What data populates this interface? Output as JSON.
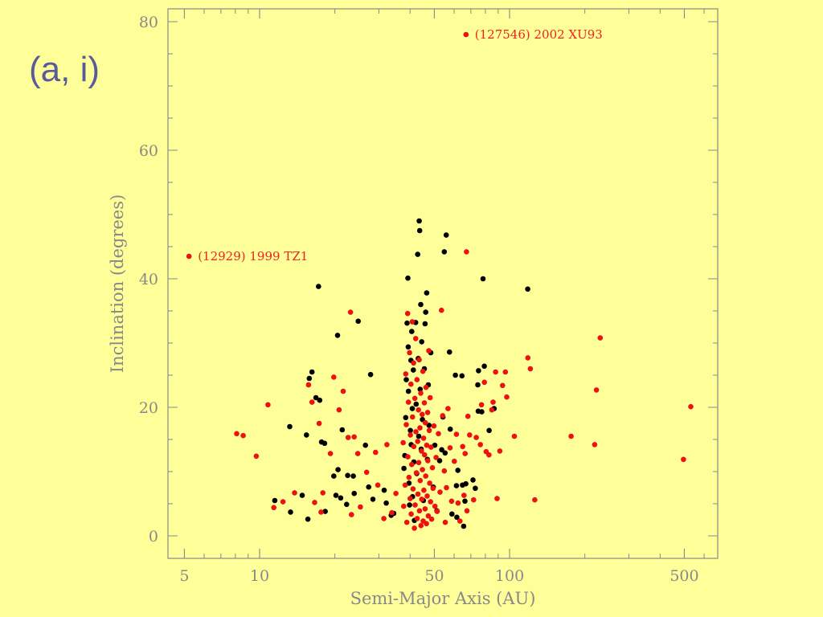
{
  "slide": {
    "title": "(a, i)"
  },
  "chart_data": {
    "type": "scatter",
    "title": "",
    "xlabel": "Semi-Major Axis (AU)",
    "ylabel": "Inclination (degrees)",
    "xscale": "log",
    "xlim": [
      4.3,
      680
    ],
    "ylim": [
      -3.5,
      82
    ],
    "x_ticks": [
      5,
      10,
      50,
      100,
      500
    ],
    "x_tick_labels": [
      "5",
      "10",
      "50",
      "100",
      "500"
    ],
    "y_ticks": [
      0,
      20,
      40,
      60,
      80
    ],
    "y_tick_labels": [
      "0",
      "20",
      "40",
      "60",
      "80"
    ],
    "grid": false,
    "colors": {
      "background": "#ffff99",
      "axis": "#888888",
      "black_series": "#000000",
      "red_series": "#ee1111",
      "annotation": "#ee2222"
    },
    "annotations": [
      {
        "text": "(127546) 2002 XU93",
        "x": 66.9,
        "y": 78
      },
      {
        "text": "(12929) 1999 TZ1",
        "x": 5.22,
        "y": 43.5
      }
    ],
    "series": [
      {
        "color": "black",
        "points": [
          [
            11.5,
            5.5
          ],
          [
            13.2,
            17
          ],
          [
            13.3,
            3.7
          ],
          [
            14.8,
            6.3
          ],
          [
            15.4,
            15.7
          ],
          [
            15.6,
            2.6
          ],
          [
            15.8,
            24.5
          ],
          [
            16.2,
            25.5
          ],
          [
            16.8,
            21.5
          ],
          [
            17.2,
            38.8
          ],
          [
            17.4,
            21.1
          ],
          [
            17.7,
            14.6
          ],
          [
            18.2,
            14.4
          ],
          [
            18.3,
            3.8
          ],
          [
            19.8,
            9.3
          ],
          [
            20.2,
            6.3
          ],
          [
            20.5,
            31.2
          ],
          [
            20.6,
            10.3
          ],
          [
            21.1,
            5.9
          ],
          [
            21.4,
            16.5
          ],
          [
            22.3,
            4.9
          ],
          [
            22.5,
            9.4
          ],
          [
            23.7,
            9.3
          ],
          [
            23.9,
            6.6
          ],
          [
            24.8,
            33.4
          ],
          [
            26.5,
            14.1
          ],
          [
            27.3,
            7.6
          ],
          [
            27.8,
            25.1
          ],
          [
            28.4,
            5.7
          ],
          [
            31.5,
            7.1
          ],
          [
            32.1,
            5.1
          ],
          [
            33.6,
            3.2
          ],
          [
            34.4,
            3.5
          ],
          [
            37.8,
            10.5
          ],
          [
            38.1,
            12.5
          ],
          [
            38.4,
            18.4
          ],
          [
            38.6,
            24.3
          ],
          [
            38.9,
            33.1
          ],
          [
            39.2,
            40.1
          ],
          [
            39.3,
            29.4
          ],
          [
            39.4,
            22.5
          ],
          [
            39.6,
            8.2
          ],
          [
            39.8,
            4.8
          ],
          [
            40.1,
            16.4
          ],
          [
            40.3,
            27.3
          ],
          [
            40.4,
            14.2
          ],
          [
            40.6,
            31.8
          ],
          [
            40.8,
            19.8
          ],
          [
            40.9,
            6.1
          ],
          [
            41.2,
            25.8
          ],
          [
            41.4,
            11.5
          ],
          [
            41.6,
            2.4
          ],
          [
            42.1,
            33.2
          ],
          [
            42.3,
            20.5
          ],
          [
            42.5,
            9.7
          ],
          [
            42.9,
            43.8
          ],
          [
            43.1,
            27.6
          ],
          [
            43.3,
            15.5
          ],
          [
            43.5,
            49
          ],
          [
            43.7,
            47.5
          ],
          [
            43.9,
            22.8
          ],
          [
            44.1,
            36
          ],
          [
            44.3,
            13.5
          ],
          [
            44.5,
            30.2
          ],
          [
            44.8,
            18.1
          ],
          [
            45.2,
            5.5
          ],
          [
            45.6,
            26
          ],
          [
            45.9,
            33
          ],
          [
            46.2,
            34.8
          ],
          [
            46.6,
            37.8
          ],
          [
            46.9,
            11.9
          ],
          [
            47.3,
            23.5
          ],
          [
            47.6,
            17.2
          ],
          [
            48.4,
            28.5
          ],
          [
            49.5,
            7.6
          ],
          [
            50.2,
            14.1
          ],
          [
            51.2,
            3.9
          ],
          [
            52.5,
            11.7
          ],
          [
            53.5,
            13.4
          ],
          [
            54.1,
            18.5
          ],
          [
            54.8,
            44.2
          ],
          [
            55.2,
            12.9
          ],
          [
            55.8,
            46.8
          ],
          [
            57.5,
            28.6
          ],
          [
            57.9,
            16.6
          ],
          [
            58.8,
            3.4
          ],
          [
            60.7,
            25
          ],
          [
            61.3,
            7.8
          ],
          [
            61.5,
            2.9
          ],
          [
            62.1,
            10.2
          ],
          [
            64.5,
            24.9
          ],
          [
            64.8,
            7.9
          ],
          [
            65.5,
            1.5
          ],
          [
            66.3,
            5.4
          ],
          [
            66.8,
            8.1
          ],
          [
            71.4,
            8.7
          ],
          [
            72.9,
            7.4
          ],
          [
            74.6,
            23.5
          ],
          [
            74.9,
            19.4
          ],
          [
            75.1,
            25.7
          ],
          [
            77.4,
            19.3
          ],
          [
            78.3,
            40
          ],
          [
            79.2,
            26.4
          ],
          [
            82.8,
            16.4
          ],
          [
            86.7,
            19.8
          ],
          [
            118.2,
            38.4
          ]
        ]
      },
      {
        "color": "red",
        "points": [
          [
            5.22,
            43.5
          ],
          [
            8.1,
            15.9
          ],
          [
            8.6,
            15.6
          ],
          [
            9.7,
            12.4
          ],
          [
            10.8,
            20.4
          ],
          [
            11.4,
            4.4
          ],
          [
            12.4,
            5.3
          ],
          [
            13.8,
            6.7
          ],
          [
            15.7,
            23.5
          ],
          [
            16.2,
            20.8
          ],
          [
            16.6,
            5.2
          ],
          [
            17.3,
            17.5
          ],
          [
            17.9,
            6.7
          ],
          [
            17.6,
            3.7
          ],
          [
            19.2,
            12.8
          ],
          [
            19.8,
            24.7
          ],
          [
            20.8,
            19.6
          ],
          [
            21.6,
            22.5
          ],
          [
            22.6,
            15.3
          ],
          [
            23.1,
            34.8
          ],
          [
            23.3,
            3.3
          ],
          [
            23.9,
            15.4
          ],
          [
            24.7,
            12.8
          ],
          [
            25.3,
            4.5
          ],
          [
            26.8,
            9.9
          ],
          [
            29.1,
            13
          ],
          [
            29.7,
            7.9
          ],
          [
            31.4,
            2.7
          ],
          [
            32.3,
            14.2
          ],
          [
            33.8,
            3.6
          ],
          [
            35.1,
            6.6
          ],
          [
            37.5,
            14.5
          ],
          [
            37.7,
            4.6
          ],
          [
            38.2,
            7.9
          ],
          [
            38.4,
            25.2
          ],
          [
            38.6,
            17.3
          ],
          [
            38.8,
            2.1
          ],
          [
            39.1,
            34.6
          ],
          [
            39.2,
            12.3
          ],
          [
            39.4,
            20.8
          ],
          [
            39.6,
            9.1
          ],
          [
            39.8,
            28.5
          ],
          [
            40,
            5.8
          ],
          [
            40.1,
            15.7
          ],
          [
            40.3,
            23.6
          ],
          [
            40.4,
            3.4
          ],
          [
            40.6,
            11.1
          ],
          [
            40.8,
            33.3
          ],
          [
            40.9,
            18.5
          ],
          [
            41.1,
            7.3
          ],
          [
            41.3,
            26.9
          ],
          [
            41.4,
            13.9
          ],
          [
            41.6,
            1.2
          ],
          [
            41.8,
            21.4
          ],
          [
            41.9,
            4.8
          ],
          [
            42.1,
            30.7
          ],
          [
            42.2,
            16.2
          ],
          [
            42.4,
            9.8
          ],
          [
            42.6,
            24.3
          ],
          [
            42.7,
            2.7
          ],
          [
            42.9,
            14.7
          ],
          [
            43,
            6.5
          ],
          [
            43.2,
            19.6
          ],
          [
            43.3,
            11.4
          ],
          [
            43.5,
            27.4
          ],
          [
            43.6,
            3.9
          ],
          [
            43.8,
            16.8
          ],
          [
            43.9,
            8.6
          ],
          [
            44.1,
            22.2
          ],
          [
            44.2,
            1.6
          ],
          [
            44.4,
            13.2
          ],
          [
            44.5,
            5.7
          ],
          [
            44.7,
            18.9
          ],
          [
            44.8,
            10.3
          ],
          [
            45,
            25.6
          ],
          [
            45.1,
            2.3
          ],
          [
            45.3,
            15.2
          ],
          [
            45.4,
            7.1
          ],
          [
            45.6,
            20.7
          ],
          [
            45.7,
            12.6
          ],
          [
            45.9,
            4.2
          ],
          [
            46,
            17.6
          ],
          [
            46.2,
            9.3
          ],
          [
            46.3,
            23.1
          ],
          [
            46.5,
            1.9
          ],
          [
            46.6,
            14.1
          ],
          [
            46.8,
            6.2
          ],
          [
            47,
            19.2
          ],
          [
            47.1,
            11.7
          ],
          [
            47.3,
            3.1
          ],
          [
            47.5,
            28.8
          ],
          [
            47.7,
            16.4
          ],
          [
            47.9,
            8.2
          ],
          [
            48.1,
            21.5
          ],
          [
            48.3,
            5.3
          ],
          [
            48.5,
            13.8
          ],
          [
            48.8,
            2.6
          ],
          [
            49.1,
            10.6
          ],
          [
            49.4,
            7.4
          ],
          [
            49.8,
            17.1
          ],
          [
            50.3,
            4.6
          ],
          [
            50.8,
            12.2
          ],
          [
            51.3,
            3.8
          ],
          [
            51.9,
            15.9
          ],
          [
            52.7,
            6.8
          ],
          [
            53.4,
            35.1
          ],
          [
            54,
            18.7
          ],
          [
            54.8,
            10.1
          ],
          [
            55.3,
            2.1
          ],
          [
            55.9,
            7.5
          ],
          [
            56.7,
            19.8
          ],
          [
            57.8,
            13.7
          ],
          [
            58.6,
            5.4
          ],
          [
            60.1,
            11.6
          ],
          [
            61.3,
            15.8
          ],
          [
            62.2,
            5.1
          ],
          [
            63.3,
            2.3
          ],
          [
            64.9,
            13.9
          ],
          [
            65.7,
            6.3
          ],
          [
            66.4,
            12.8
          ],
          [
            67.2,
            44.2
          ],
          [
            67.5,
            3.9
          ],
          [
            68.1,
            18.6
          ],
          [
            69.2,
            15.7
          ],
          [
            71.8,
            5.6
          ],
          [
            73.6,
            15.3
          ],
          [
            76.4,
            14.2
          ],
          [
            77.2,
            20.4
          ],
          [
            79.3,
            23.9
          ],
          [
            80.6,
            13.1
          ],
          [
            82.7,
            12.6
          ],
          [
            84.9,
            19.6
          ],
          [
            85.9,
            20.8
          ],
          [
            87.9,
            25.5
          ],
          [
            89.1,
            5.8
          ],
          [
            91.4,
            13.2
          ],
          [
            93.7,
            23.4
          ],
          [
            96.2,
            25.5
          ],
          [
            97.4,
            21.6
          ],
          [
            104.5,
            15.5
          ],
          [
            118.3,
            27.7
          ],
          [
            121.1,
            26
          ],
          [
            126.1,
            5.6
          ],
          [
            176.2,
            15.5
          ],
          [
            219,
            14.2
          ],
          [
            222.5,
            22.7
          ],
          [
            230.4,
            30.8
          ],
          [
            496.1,
            11.9
          ],
          [
            530.5,
            20.1
          ],
          [
            66.9,
            78
          ]
        ]
      }
    ]
  }
}
